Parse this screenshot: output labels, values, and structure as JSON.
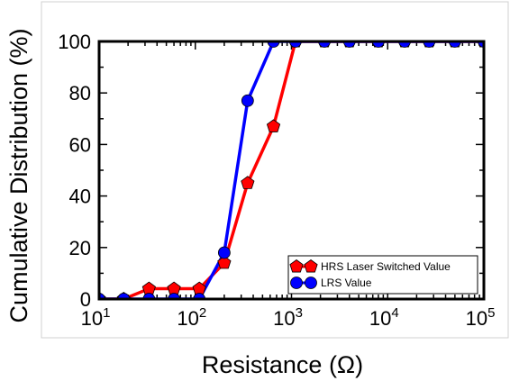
{
  "chart_data": {
    "type": "line",
    "title": "",
    "xlabel": "Resistance (Ω)",
    "ylabel": "Cumulative Distribution (%)",
    "xscale": "log",
    "xlim": [
      10,
      100000
    ],
    "ylim": [
      0,
      100
    ],
    "x_ticks": [
      {
        "value": 10,
        "base": "10",
        "exp": "1"
      },
      {
        "value": 100,
        "base": "10",
        "exp": "2"
      },
      {
        "value": 1000,
        "base": "10",
        "exp": "3"
      },
      {
        "value": 10000,
        "base": "10",
        "exp": "4"
      },
      {
        "value": 100000,
        "base": "10",
        "exp": "5"
      }
    ],
    "y_ticks": [
      0,
      20,
      40,
      60,
      80,
      100
    ],
    "grid": false,
    "legend_position": "lower-right",
    "series": [
      {
        "name": "HRS Laser Switched Value",
        "color": "#ff0000",
        "marker": "pentagon",
        "x": [
          10,
          18,
          33,
          60,
          110,
          200,
          350,
          650,
          1100,
          2200,
          4000,
          8000,
          15000,
          27000,
          50000,
          100000
        ],
        "y": [
          0,
          0,
          4,
          4,
          4,
          14,
          45,
          67,
          100,
          100,
          100,
          100,
          100,
          100,
          100,
          100
        ]
      },
      {
        "name": "LRS Value",
        "color": "#0000ff",
        "marker": "circle",
        "x": [
          10,
          18,
          33,
          60,
          110,
          200,
          350,
          650,
          1100,
          2200,
          4000,
          8000,
          15000,
          27000,
          50000,
          100000
        ],
        "y": [
          0,
          0,
          0,
          0,
          0,
          18,
          77,
          100,
          100,
          100,
          100,
          100,
          100,
          100,
          100,
          100
        ]
      }
    ]
  }
}
